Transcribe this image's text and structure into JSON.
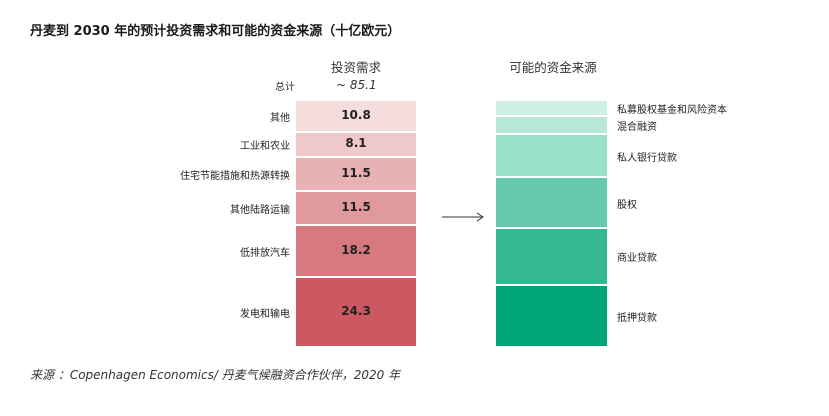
{
  "title": "丹麦到 2030 年的预计投资需求和可能的资金来源（十亿欧元）",
  "source": "来源 ：Copenhagen Economics/ 丹麦气候融资合作伙伴，2020 年",
  "chart_data": {
    "type": "bar",
    "left_stack": {
      "header": "投资需求",
      "total_label": "总计",
      "total_value": "~ 85.1",
      "categories": [
        "其他",
        "工业和农业",
        "住宅节能措施和热源转换",
        "其他陆路运输",
        "低排放汽车",
        "发电和输电"
      ],
      "values": [
        10.8,
        8.1,
        11.5,
        11.5,
        18.2,
        24.3
      ],
      "colors": [
        "#f5dcdd",
        "#efc8ca",
        "#e8b2b5",
        "#e0999d",
        "#d67a80",
        "#cc5961"
      ]
    },
    "right_stack": {
      "header": "可能的资金来源",
      "categories": [
        "私募股权基金和风险资本",
        "混合融资",
        "私人银行贷款",
        "股权",
        "商业贷款",
        "抵押贷款"
      ],
      "colors": [
        "#cff0e6",
        "#b6e7d8",
        "#9adfc9",
        "#66cbae",
        "#33b891",
        "#00a678"
      ]
    }
  }
}
